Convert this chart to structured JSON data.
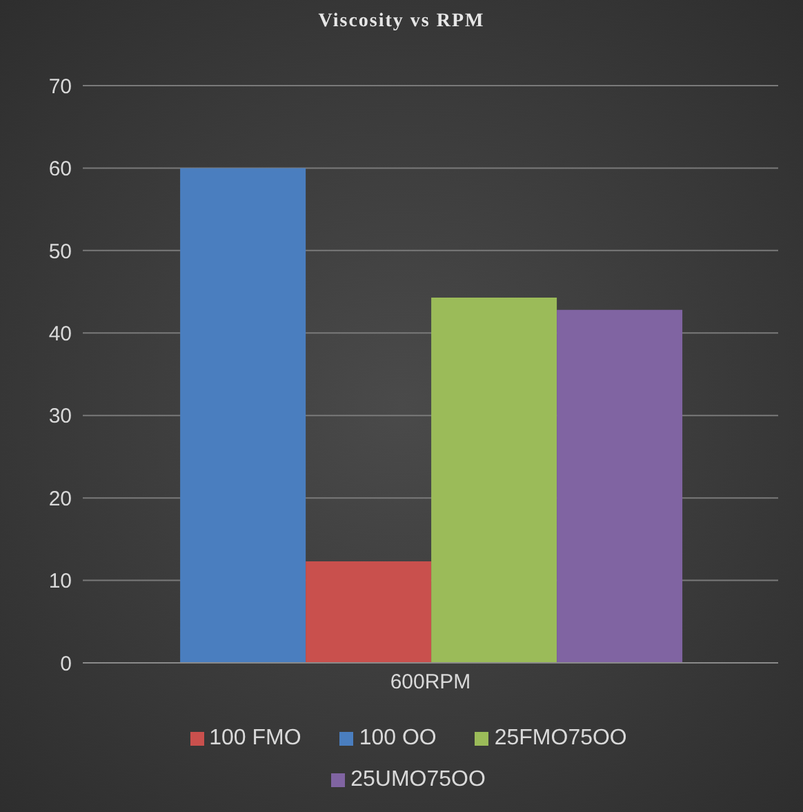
{
  "chart_data": {
    "type": "bar",
    "title": "Viscosity vs RPM",
    "categories": [
      "600RPM"
    ],
    "series": [
      {
        "name": "100 OO",
        "color": "#4a7ebf",
        "values": [
          60
        ]
      },
      {
        "name": "100 FMO",
        "color": "#c9504d",
        "values": [
          12.3
        ]
      },
      {
        "name": "25FMO75OO",
        "color": "#9bbb59",
        "values": [
          44.3
        ]
      },
      {
        "name": "25UMO75OO",
        "color": "#8064a2",
        "values": [
          42.8
        ]
      }
    ],
    "ylim": [
      0,
      70
    ],
    "yticks": [
      0,
      10,
      20,
      30,
      40,
      50,
      60,
      70
    ],
    "grid": "y",
    "legend": "bottom"
  }
}
